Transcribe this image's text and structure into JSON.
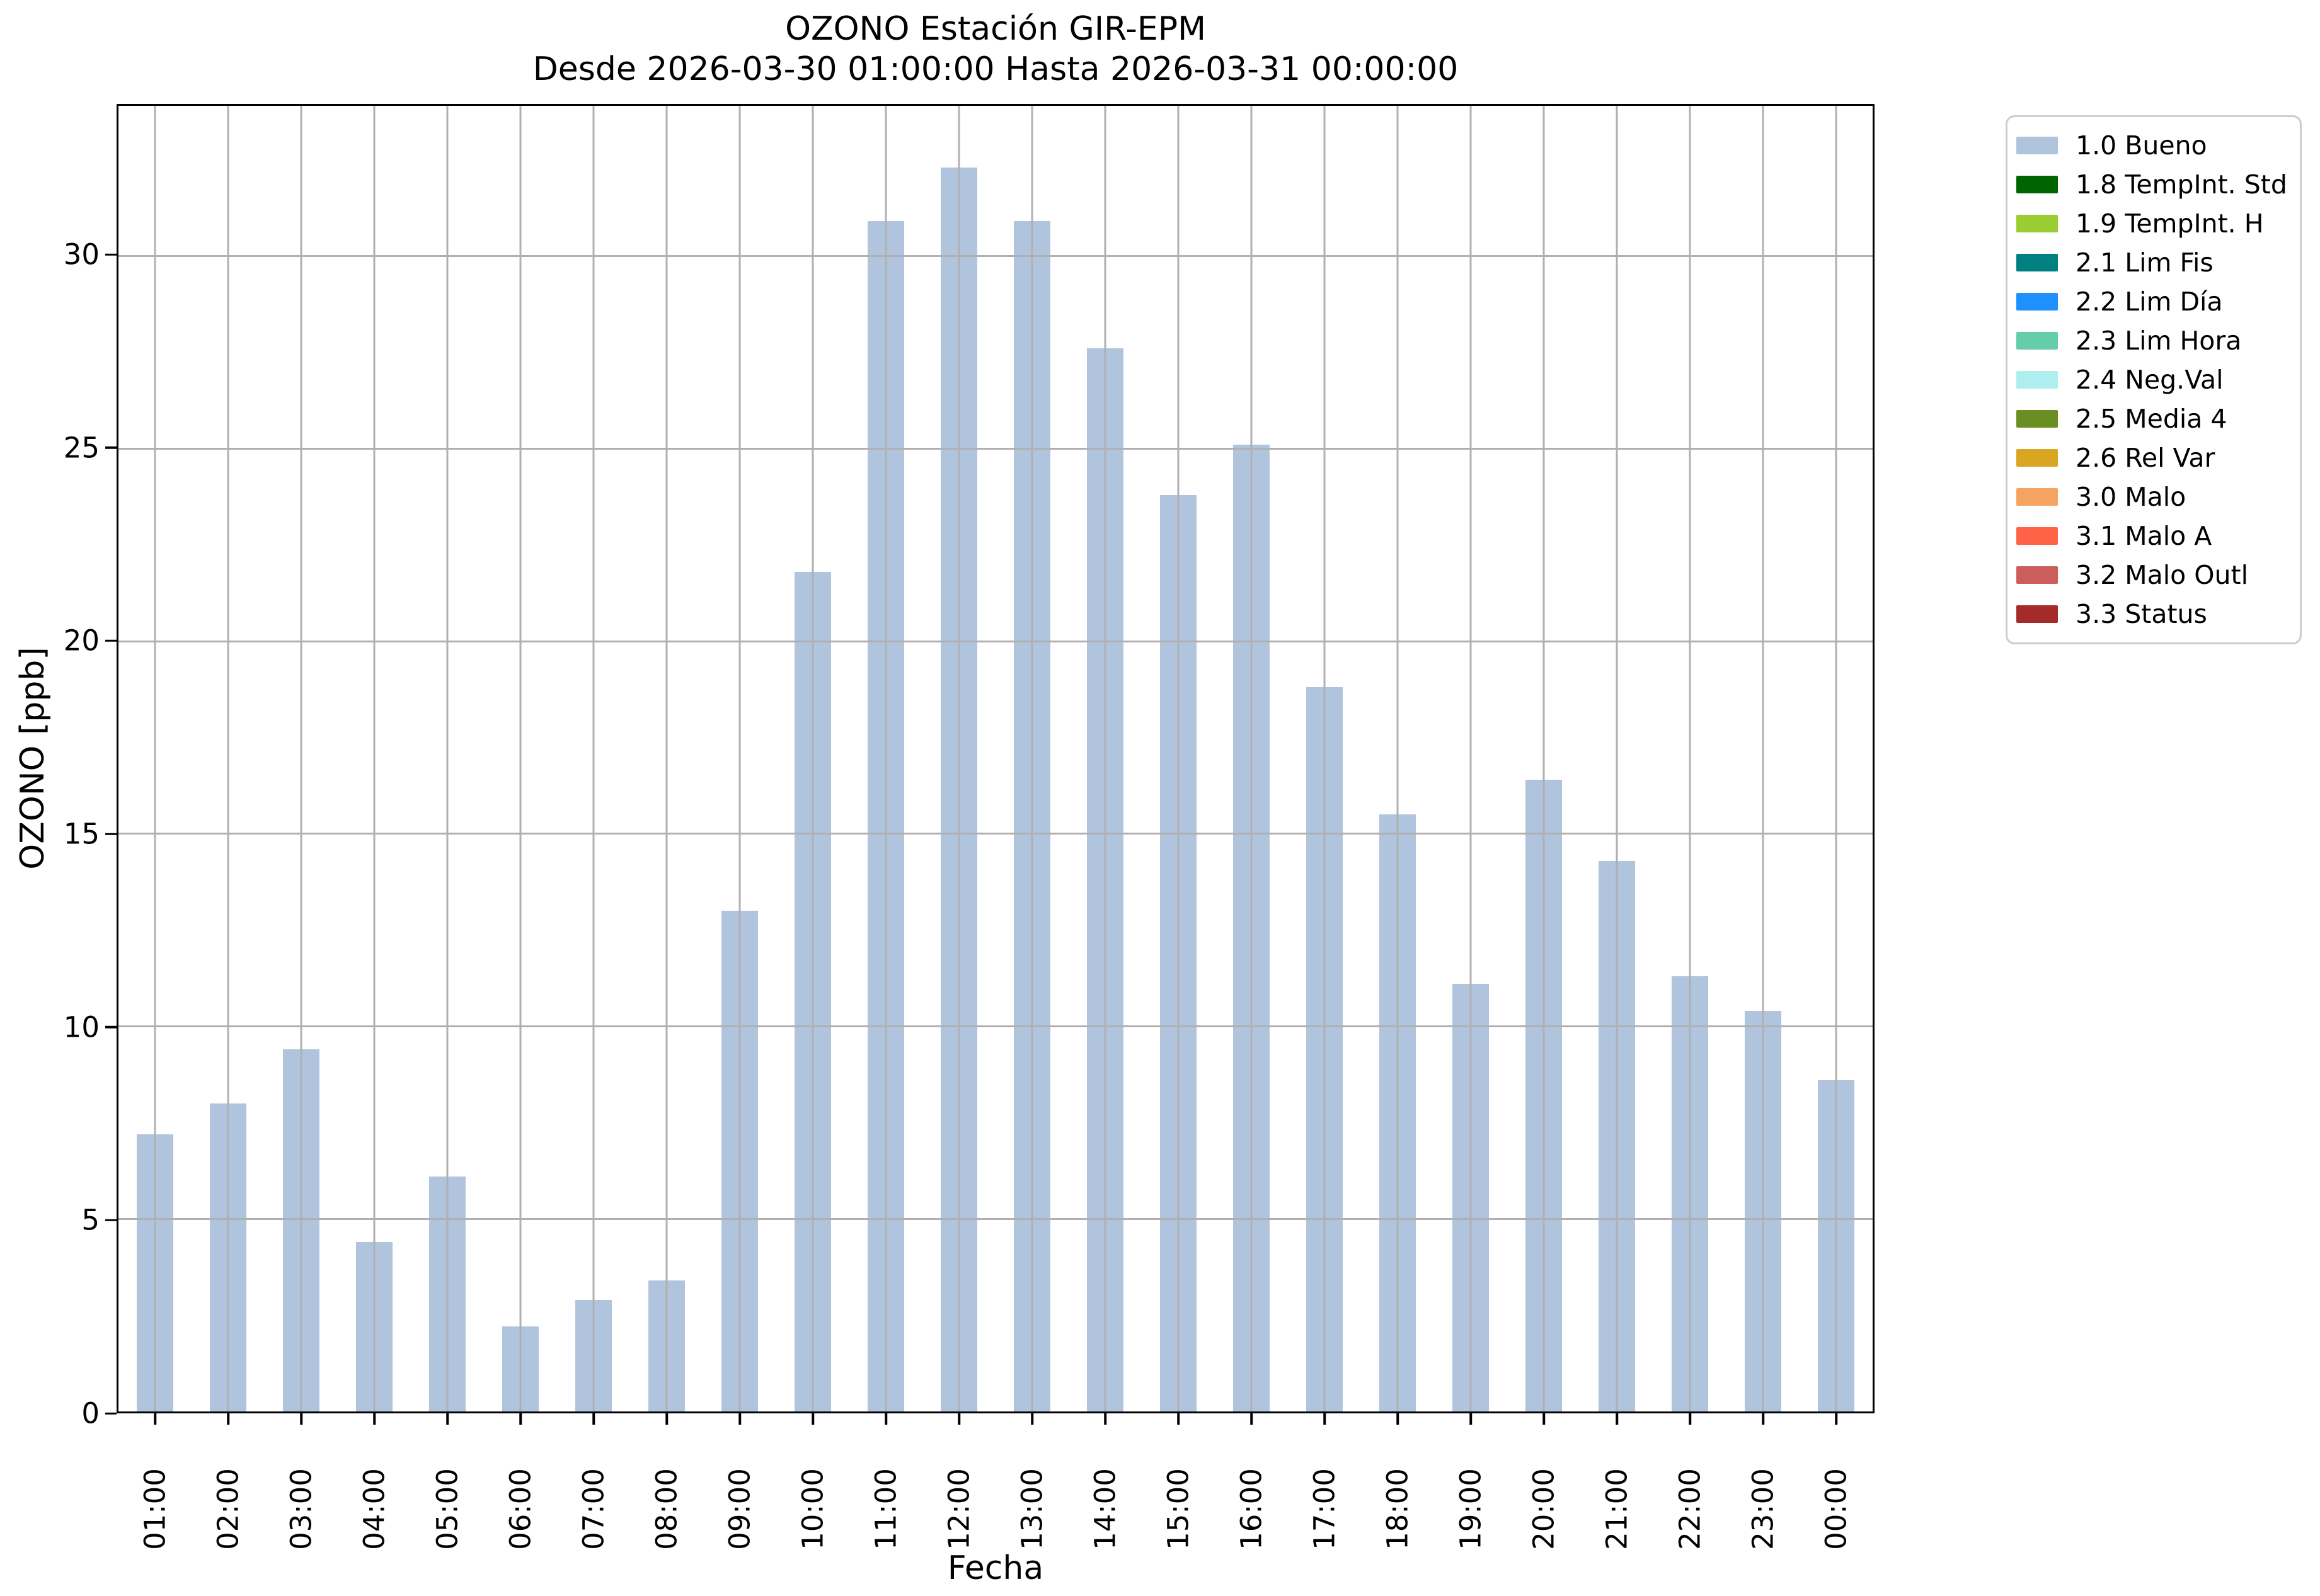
{
  "chart_data": {
    "type": "bar",
    "title": "OZONO Estación GIR-EPM",
    "subtitle": "Desde 2026-03-30 01:00:00 Hasta 2026-03-31 00:00:00",
    "xlabel": "Fecha",
    "ylabel": "OZONO [ppb]",
    "categories": [
      "01:00",
      "02:00",
      "03:00",
      "04:00",
      "05:00",
      "06:00",
      "07:00",
      "08:00",
      "09:00",
      "10:00",
      "11:00",
      "12:00",
      "13:00",
      "14:00",
      "15:00",
      "16:00",
      "17:00",
      "18:00",
      "19:00",
      "20:00",
      "21:00",
      "22:00",
      "23:00",
      "00:00"
    ],
    "values": [
      7.2,
      8.0,
      9.4,
      4.4,
      6.1,
      2.2,
      2.9,
      3.4,
      13.0,
      21.8,
      30.9,
      32.3,
      30.9,
      27.6,
      23.8,
      25.1,
      18.8,
      15.5,
      11.1,
      16.4,
      14.3,
      11.3,
      10.4,
      8.6
    ],
    "ylim": [
      0,
      33.9
    ],
    "yticks": [
      0,
      5,
      10,
      15,
      20,
      25,
      30
    ],
    "grid": true,
    "grid_color": "#b0b0b0",
    "bar_color": "#b0c4de",
    "legend_position": "upper right",
    "legend": [
      {
        "label": "1.0 Bueno",
        "color": "#b0c4de"
      },
      {
        "label": "1.8 TempInt. Std",
        "color": "#006400"
      },
      {
        "label": "1.9 TempInt. H",
        "color": "#9acd32"
      },
      {
        "label": "2.1 Lim Fis",
        "color": "#008080"
      },
      {
        "label": "2.2 Lim Día",
        "color": "#1e90ff"
      },
      {
        "label": "2.3 Lim Hora",
        "color": "#66cdaa"
      },
      {
        "label": "2.4 Neg.Val",
        "color": "#afeeee"
      },
      {
        "label": "2.5 Media 4",
        "color": "#6b8e23"
      },
      {
        "label": "2.6 Rel Var",
        "color": "#daa520"
      },
      {
        "label": "3.0 Malo",
        "color": "#f4a460"
      },
      {
        "label": "3.1 Malo A",
        "color": "#ff6347"
      },
      {
        "label": "3.2 Malo Outl",
        "color": "#cd5c5c"
      },
      {
        "label": "3.3 Status",
        "color": "#a52a2a"
      }
    ]
  }
}
